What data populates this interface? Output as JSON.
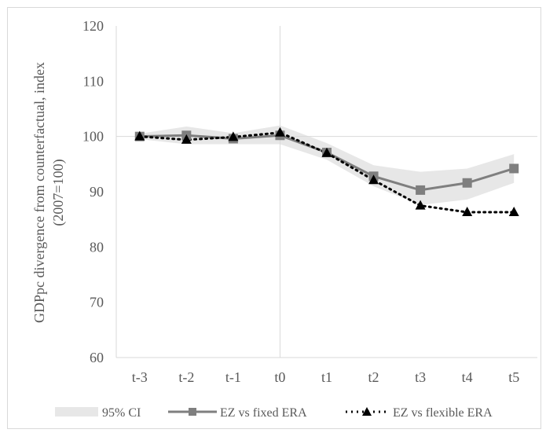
{
  "chart_data": {
    "type": "line",
    "title": "",
    "xlabel": "",
    "ylabel": "GDPpc divergence from counterfactual, index (2007=100)",
    "ylabel_lines": [
      "GDPpc divergence from counterfactual, index",
      "(2007=100)"
    ],
    "categories": [
      "t-3",
      "t-2",
      "t-1",
      "t0",
      "t1",
      "t2",
      "t3",
      "t4",
      "t5"
    ],
    "ylim": [
      60,
      120
    ],
    "yticks": [
      60,
      70,
      80,
      90,
      100,
      110,
      120
    ],
    "grid": "horizontal and vertical at 100 / t0",
    "legend_position": "bottom",
    "series": [
      {
        "name": "95% CI",
        "kind": "band",
        "lower": [
          99.5,
          98.6,
          98.6,
          98.6,
          95.8,
          91.0,
          87.6,
          88.6,
          91.6
        ],
        "upper": [
          100.5,
          101.8,
          100.6,
          102.0,
          98.8,
          94.8,
          93.6,
          94.2,
          96.8
        ],
        "color": "#e7e7e7"
      },
      {
        "name": "EZ vs fixed ERA",
        "kind": "line",
        "marker": "square",
        "values": [
          100.0,
          100.2,
          99.6,
          100.2,
          97.1,
          92.8,
          90.3,
          91.6,
          94.2
        ],
        "color": "#7f7f7f"
      },
      {
        "name": "EZ vs flexible ERA",
        "kind": "line",
        "marker": "triangle",
        "dash": "dotted",
        "values": [
          100.0,
          99.4,
          99.9,
          100.7,
          97.0,
          92.1,
          87.5,
          86.3,
          86.3
        ],
        "color": "#000000"
      }
    ]
  }
}
